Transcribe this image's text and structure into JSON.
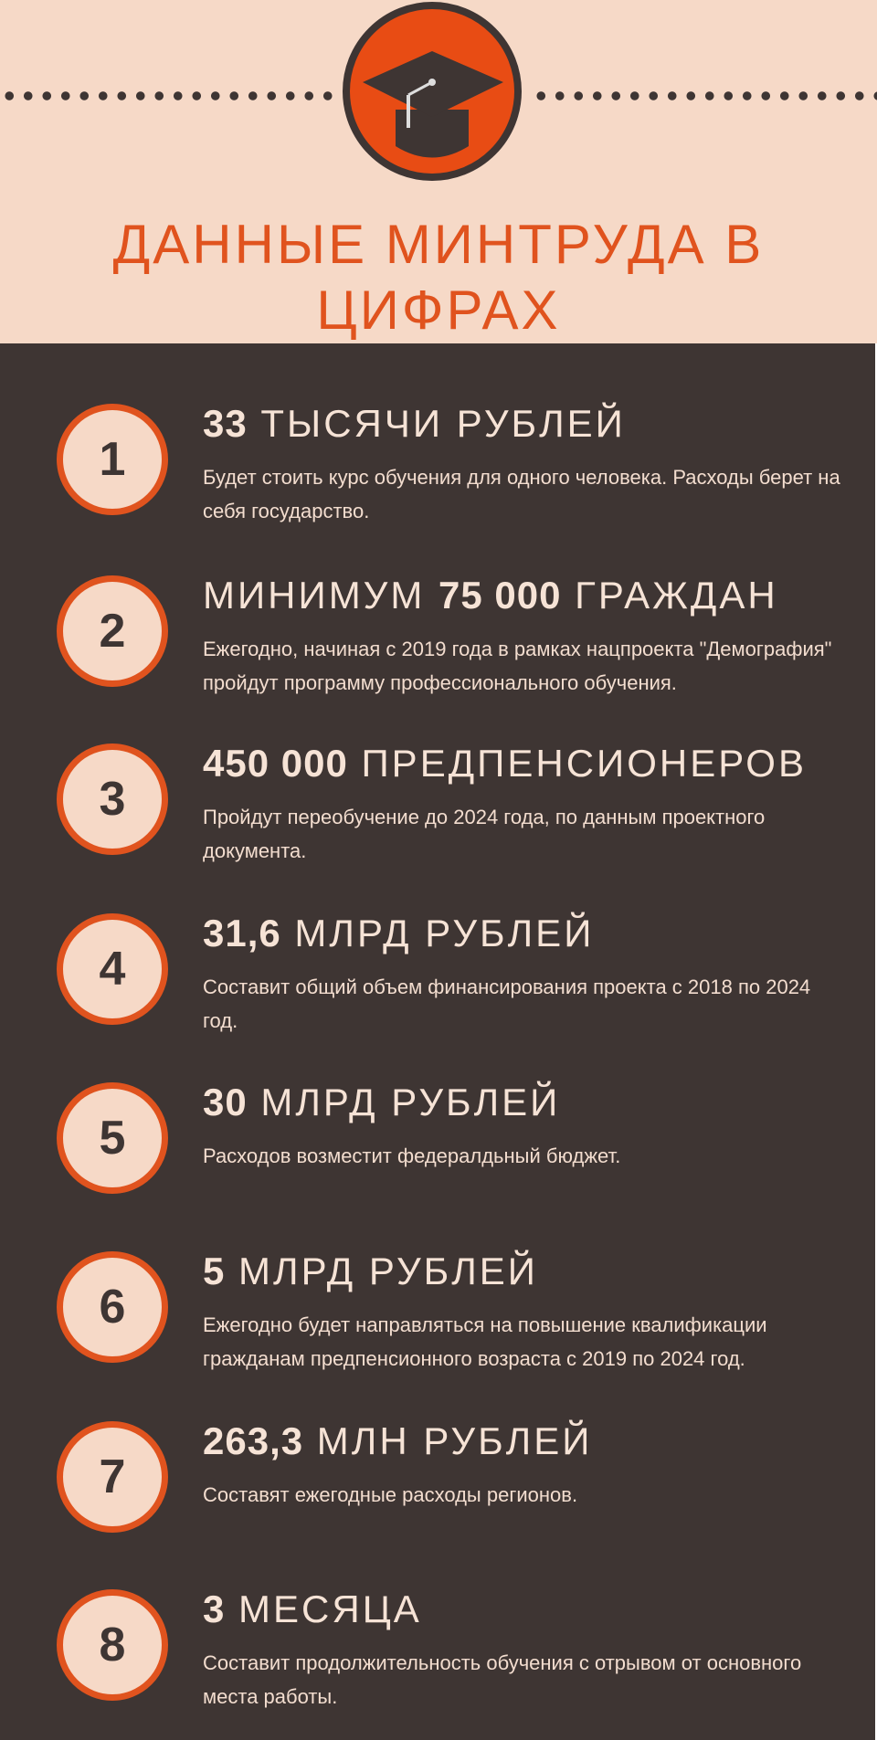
{
  "header": {
    "title_line1": "ДАННЫЕ МИНТРУДА В",
    "title_line2": "ЦИФРАХ",
    "icon": "graduation-cap-icon"
  },
  "colors": {
    "peach": "#f6d9c7",
    "dark": "#3e3533",
    "accent": "#e0531e",
    "badge": "#e84c14"
  },
  "items": [
    {
      "n": "1",
      "pre": "",
      "bold": "33",
      "post": " ТЫСЯЧИ РУБЛЕЙ",
      "text": "Будет стоить курс обучения для одного человека. Расходы берет на себя государство."
    },
    {
      "n": "2",
      "pre": "МИНИМУМ ",
      "bold": "75 000",
      "post": " ГРАЖДАН",
      "text": "Ежегодно, начиная с 2019 года в рамках нацпроекта \"Демография\" пройдут программу профессионального обучения."
    },
    {
      "n": "3",
      "pre": "",
      "bold": "450 000",
      "post": " ПРЕДПЕНСИОНЕРОВ",
      "text": "Пройдут переобучение до 2024 года, по данным проектного документа."
    },
    {
      "n": "4",
      "pre": "",
      "bold": "31,6",
      "post": " МЛРД РУБЛЕЙ",
      "text": "Составит общий объем финансирования проекта с 2018 по 2024 год."
    },
    {
      "n": "5",
      "pre": "",
      "bold": "30",
      "post": " МЛРД РУБЛЕЙ",
      "text": "Расходов возместит федералдьный бюджет."
    },
    {
      "n": "6",
      "pre": "",
      "bold": "5",
      "post": " МЛРД РУБЛЕЙ",
      "text": "Ежегодно будет направляться на повышение квалификации гражданам предпенсионного возраста с 2019 по 2024 год."
    },
    {
      "n": "7",
      "pre": "",
      "bold": "263,3",
      "post": " МЛН РУБЛЕЙ",
      "text": "Составят ежегодные расходы регионов."
    },
    {
      "n": "8",
      "pre": "",
      "bold": "3",
      "post": " МЕСЯЦА",
      "text": "Составит продолжительность обучения с отрывом от основного места работы."
    }
  ]
}
